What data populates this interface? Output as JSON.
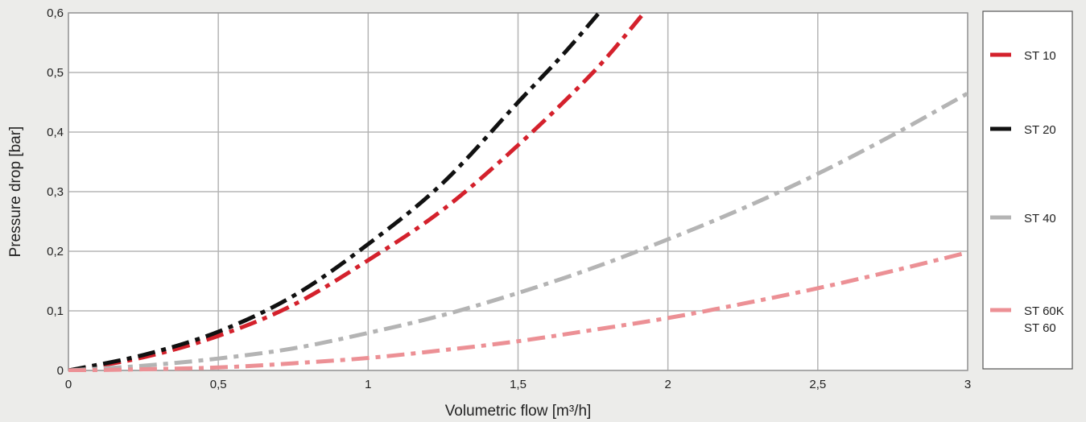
{
  "chart_data": {
    "type": "line",
    "title": "",
    "xlabel": "Volumetric flow [m³/h]",
    "ylabel": "Pressure drop [bar]",
    "xlim": [
      0,
      3
    ],
    "ylim": [
      0,
      0.6
    ],
    "x_ticks": [
      0,
      0.5,
      1,
      1.5,
      2,
      2.5,
      3
    ],
    "x_tick_labels": [
      "0",
      "0,5",
      "1",
      "1,5",
      "2",
      "2,5",
      "3"
    ],
    "y_ticks": [
      0,
      0.1,
      0.2,
      0.3,
      0.4,
      0.5,
      0.6
    ],
    "y_tick_labels": [
      "0",
      "0,1",
      "0,2",
      "0,3",
      "0,4",
      "0,5",
      "0,6"
    ],
    "grid": true,
    "legend_position": "right",
    "line_style": "dash-dot",
    "series": [
      {
        "name": "ST 10",
        "color": "#d4212c",
        "x": [
          0,
          0.25,
          0.5,
          0.75,
          1,
          1.25,
          1.5,
          1.75,
          1.92
        ],
        "y": [
          0,
          0.022,
          0.058,
          0.11,
          0.185,
          0.27,
          0.378,
          0.5,
          0.6
        ]
      },
      {
        "name": "ST 20",
        "color": "#111111",
        "x": [
          0,
          0.25,
          0.5,
          0.75,
          1,
          1.25,
          1.5,
          1.65,
          1.77
        ],
        "y": [
          0,
          0.026,
          0.065,
          0.125,
          0.212,
          0.315,
          0.45,
          0.53,
          0.6
        ]
      },
      {
        "name": "ST 40",
        "color": "#b4b4b4",
        "x": [
          0,
          0.25,
          0.5,
          0.75,
          1,
          1.25,
          1.5,
          1.75,
          2,
          2.25,
          2.5,
          2.75,
          3
        ],
        "y": [
          0,
          0.008,
          0.02,
          0.037,
          0.063,
          0.093,
          0.13,
          0.172,
          0.22,
          0.272,
          0.33,
          0.395,
          0.465
        ]
      },
      {
        "name": "ST 60K\nST 60",
        "legend_lines": [
          "ST 60K",
          "ST 60"
        ],
        "color": "#ec9095",
        "x": [
          0,
          0.25,
          0.5,
          0.75,
          1,
          1.25,
          1.5,
          1.75,
          2,
          2.25,
          2.5,
          2.75,
          3
        ],
        "y": [
          0,
          0.002,
          0.005,
          0.012,
          0.021,
          0.034,
          0.049,
          0.068,
          0.088,
          0.112,
          0.138,
          0.167,
          0.198
        ]
      }
    ]
  }
}
